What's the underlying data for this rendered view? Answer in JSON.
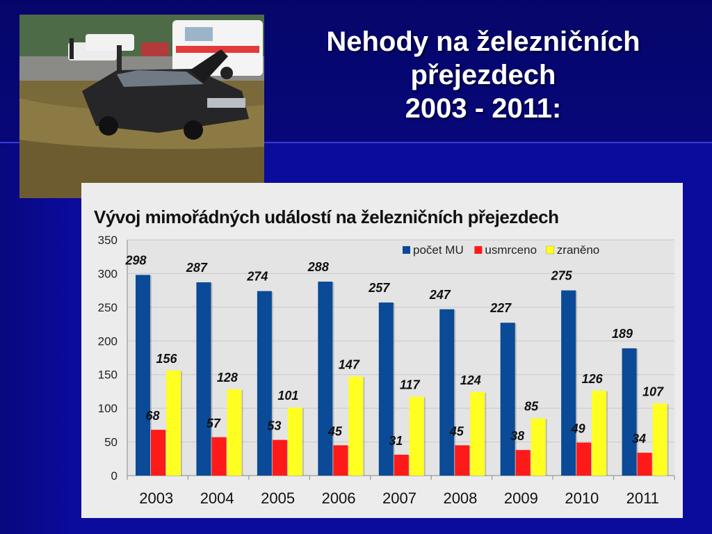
{
  "slide": {
    "title_lines": [
      "Nehody na železničních",
      "přejezdech",
      "2003 - 2011:"
    ]
  },
  "colors": {
    "background": "#0b0b9c",
    "series_1": "#0a4a96",
    "series_2": "#ff1a1a",
    "series_3": "#ffff22"
  },
  "chart_data": {
    "type": "bar",
    "title": "Vývoj mimořádných událostí na železničních přejezdech",
    "categories": [
      "2003",
      "2004",
      "2005",
      "2006",
      "2007",
      "2008",
      "2009",
      "2010",
      "2011"
    ],
    "series": [
      {
        "name": "počet MU",
        "color": "#0a4a96",
        "values": [
          298,
          287,
          274,
          288,
          257,
          247,
          227,
          275,
          189
        ]
      },
      {
        "name": "usmrceno",
        "color": "#ff1a1a",
        "values": [
          68,
          57,
          53,
          45,
          31,
          45,
          38,
          49,
          34
        ]
      },
      {
        "name": "zraněno",
        "color": "#ffff22",
        "values": [
          156,
          128,
          101,
          147,
          117,
          124,
          85,
          126,
          107
        ]
      }
    ],
    "ylim": [
      0,
      350
    ],
    "yticks": [
      0,
      50,
      100,
      150,
      200,
      250,
      300,
      350
    ],
    "grid": true,
    "legend": "top-right",
    "data_labels": true
  }
}
